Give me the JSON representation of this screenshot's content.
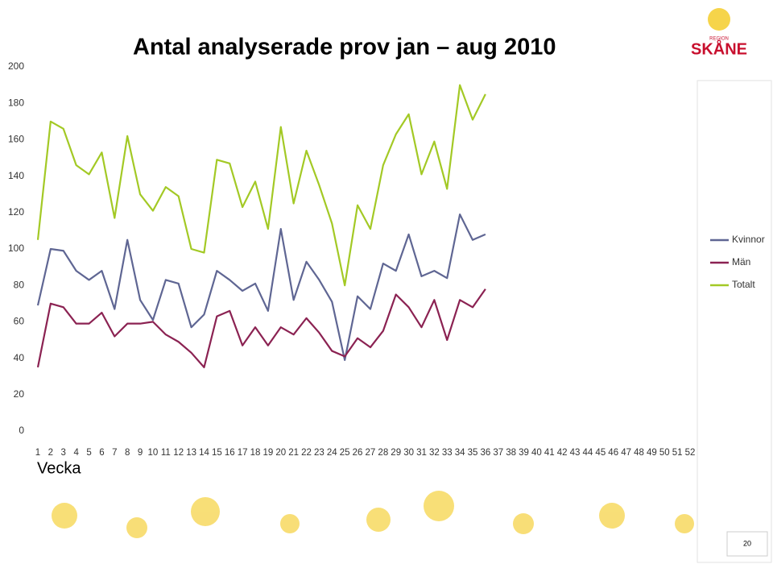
{
  "chart_data": {
    "type": "line",
    "title": "Antal analyserade prov jan – aug 2010",
    "x_label": "Vecka",
    "categories": [
      1,
      2,
      3,
      4,
      5,
      6,
      7,
      8,
      9,
      10,
      11,
      12,
      13,
      14,
      15,
      16,
      17,
      18,
      19,
      20,
      21,
      22,
      23,
      24,
      25,
      26,
      27,
      28,
      29,
      30,
      31,
      32,
      33,
      34,
      35,
      36,
      37,
      38,
      39,
      40,
      41,
      42,
      43,
      44,
      45,
      46,
      47,
      48,
      49,
      50,
      51,
      52
    ],
    "series": [
      {
        "name": "Kvinnor",
        "color": "#5f6693",
        "values": [
          69,
          100,
          99,
          88,
          83,
          88,
          67,
          105,
          72,
          61,
          83,
          81,
          57,
          64,
          88,
          83,
          77,
          81,
          66,
          111,
          72,
          93,
          83,
          71,
          39,
          74,
          67,
          92,
          88,
          108,
          85,
          88,
          84,
          119,
          105,
          108,
          null,
          null,
          null,
          null,
          null,
          null,
          null,
          null,
          null,
          null,
          null,
          null,
          null,
          null,
          null,
          null
        ]
      },
      {
        "name": "Män",
        "color": "#8b2252",
        "values": [
          35,
          70,
          68,
          59,
          59,
          65,
          52,
          59,
          59,
          60,
          53,
          49,
          43,
          35,
          63,
          66,
          47,
          57,
          47,
          57,
          53,
          62,
          54,
          44,
          41,
          51,
          46,
          55,
          75,
          68,
          57,
          72,
          50,
          72,
          68,
          78,
          null,
          null,
          null,
          null,
          null,
          null,
          null,
          null,
          null,
          null,
          null,
          null,
          null,
          null,
          null,
          null
        ]
      },
      {
        "name": "Totalt",
        "color": "#a3c925",
        "values": [
          105,
          170,
          166,
          146,
          141,
          153,
          117,
          162,
          130,
          121,
          134,
          129,
          100,
          98,
          149,
          147,
          123,
          137,
          111,
          167,
          125,
          154,
          135,
          114,
          80,
          124,
          111,
          146,
          163,
          174,
          141,
          159,
          133,
          190,
          171,
          185,
          null,
          null,
          null,
          null,
          null,
          null,
          null,
          null,
          null,
          null,
          null,
          null,
          null,
          null,
          null,
          null
        ]
      }
    ],
    "ylim": [
      0,
      200
    ],
    "yticks": [
      0,
      20,
      40,
      60,
      80,
      100,
      120,
      140,
      160,
      180,
      200
    ],
    "grid": false,
    "legend": "right"
  },
  "logo": {
    "region": "REGION",
    "name": "SKÅNE"
  },
  "page_number": "20"
}
